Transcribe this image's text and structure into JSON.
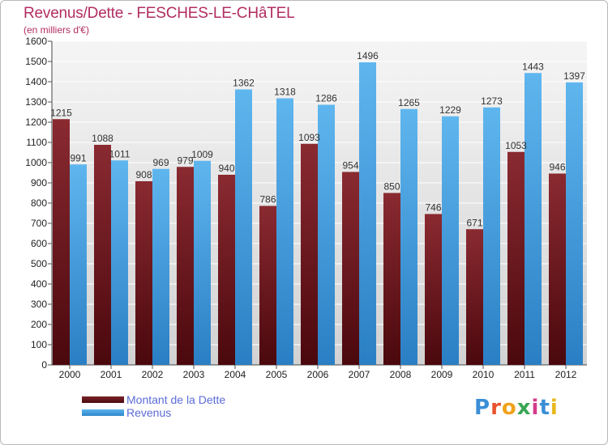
{
  "chart_data": {
    "type": "bar",
    "title": "Revenus/Dette - FESCHES-LE-CHâTEL",
    "subtitle": "(en milliers d'€)",
    "categories": [
      "2000",
      "2001",
      "2002",
      "2003",
      "2004",
      "2005",
      "2006",
      "2007",
      "2008",
      "2009",
      "2010",
      "2011",
      "2012"
    ],
    "series": [
      {
        "name": "Montant de la Dette",
        "values": [
          1215,
          1088,
          908,
          979,
          940,
          786,
          1093,
          954,
          850,
          746,
          671,
          1053,
          946
        ],
        "labels": [
          "1215",
          "1088",
          "908",
          "979",
          "940",
          "786",
          "1093",
          "954",
          "850",
          "746",
          "671",
          "1053",
          "946"
        ],
        "color": "#7a2228"
      },
      {
        "name": "Revenus",
        "values": [
          991,
          1011,
          969,
          1009,
          1362,
          1318,
          1286,
          1496,
          1265,
          1229,
          1273,
          1443,
          1397
        ],
        "labels": [
          "991",
          "1011",
          "969",
          "1009",
          "1362",
          "1318",
          "1286",
          "1496",
          "1265",
          "1229",
          "1273",
          "1443",
          "1397"
        ],
        "color": "#4aa3e0"
      }
    ],
    "ylim": [
      0,
      1600
    ],
    "yticks": [
      0,
      100,
      200,
      300,
      400,
      500,
      600,
      700,
      800,
      900,
      1000,
      1100,
      1200,
      1300,
      1400,
      1500,
      1600
    ],
    "grid": true,
    "legend": "bottom-left"
  },
  "legend": {
    "debt_label": "Montant de la Dette",
    "revenue_label": "Revenus"
  },
  "logo": {
    "letters": [
      "P",
      "r",
      "o",
      "x",
      "i",
      "t",
      "i"
    ],
    "colors": [
      "#3a8ed6",
      "#e8532e",
      "#f0a21c",
      "#3aa655",
      "#d43b8a",
      "#3a8ed6",
      "#e8b81c"
    ]
  }
}
